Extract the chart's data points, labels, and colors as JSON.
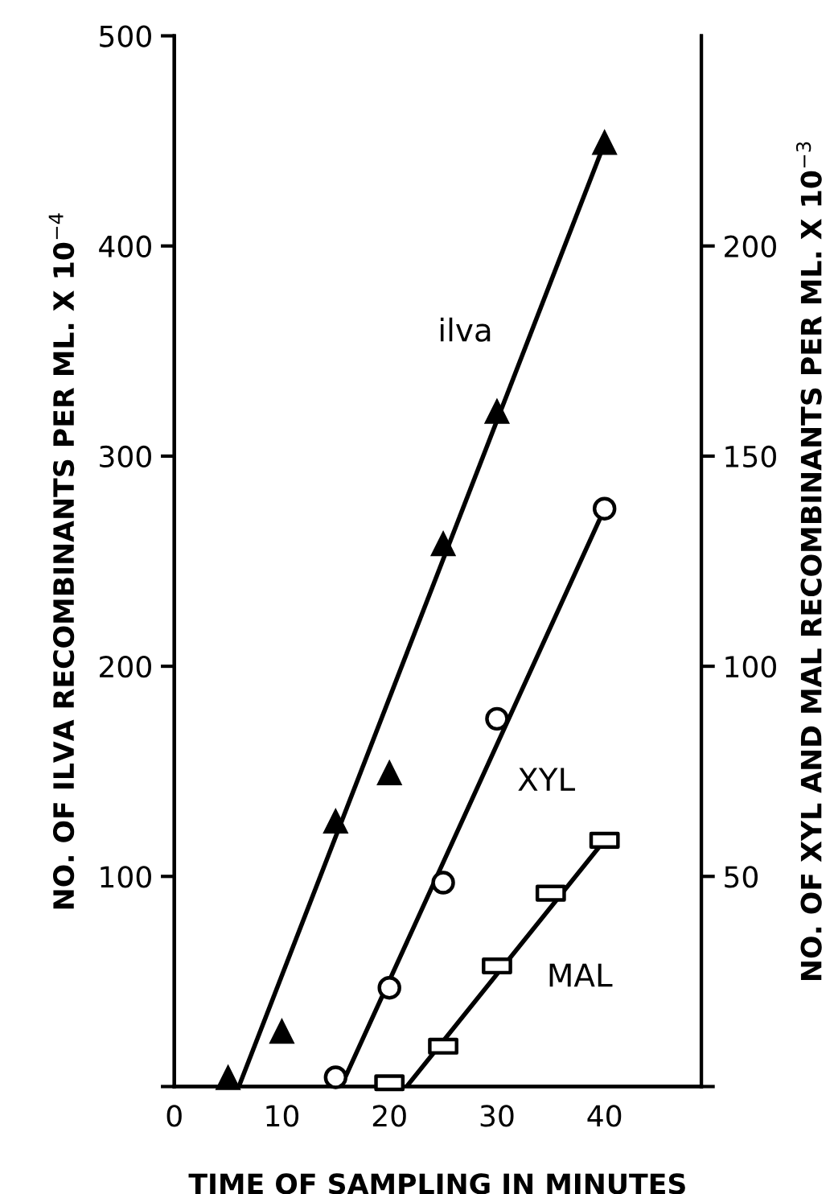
{
  "chart_data": {
    "type": "scatter",
    "xlabel": "TIME OF SAMPLING IN MINUTES",
    "ylabel": "NO. OF ILVA RECOMBINANTS PER ML. X 10$^{−4}$",
    "y2label": "NO. OF XYL AND MAL RECOMBINANTS PER ML. X 10$^{−3}$",
    "xlim": [
      0,
      49
    ],
    "xticks": [
      0,
      10,
      20,
      30,
      40
    ],
    "ylim": [
      0,
      500
    ],
    "yticks": [
      {
        "value": 0,
        "label": null
      },
      100,
      200,
      300,
      400,
      500
    ],
    "y2lim": [
      0,
      250
    ],
    "y2ticks": [
      {
        "value": 0,
        "label": null
      },
      50,
      100,
      150,
      200
    ],
    "grid": false,
    "legend": false,
    "series": [
      {
        "marker": "triangle",
        "color": "#000000",
        "x": [
          5,
          10,
          15,
          20,
          25,
          30,
          40
        ],
        "values": [
          4,
          26,
          126,
          149,
          258,
          321,
          449
        ]
      },
      {
        "type": "line",
        "name": "ilva",
        "color": "#000000",
        "x": [
          6,
          40
        ],
        "values": [
          0,
          449
        ]
      },
      {
        "marker": "circle",
        "axis": "y2",
        "color": "#000000",
        "x": [
          15,
          20,
          25,
          30,
          40
        ],
        "values": [
          2.2,
          23.5,
          48.5,
          87.5,
          137.5
        ]
      },
      {
        "type": "line",
        "name": "XYL",
        "axis": "y2",
        "color": "#000000",
        "x": [
          15.5,
          40
        ],
        "values": [
          0,
          137.5
        ]
      },
      {
        "marker": "square",
        "axis": "y2",
        "color": "#000000",
        "x": [
          20,
          25,
          30,
          35,
          40
        ],
        "values": [
          0.9,
          9.6,
          28.7,
          46,
          58.6
        ]
      },
      {
        "type": "line",
        "name": "MAL",
        "axis": "y2",
        "color": "#000000",
        "x": [
          21.6,
          40
        ],
        "values": [
          0,
          58.6
        ]
      }
    ]
  }
}
